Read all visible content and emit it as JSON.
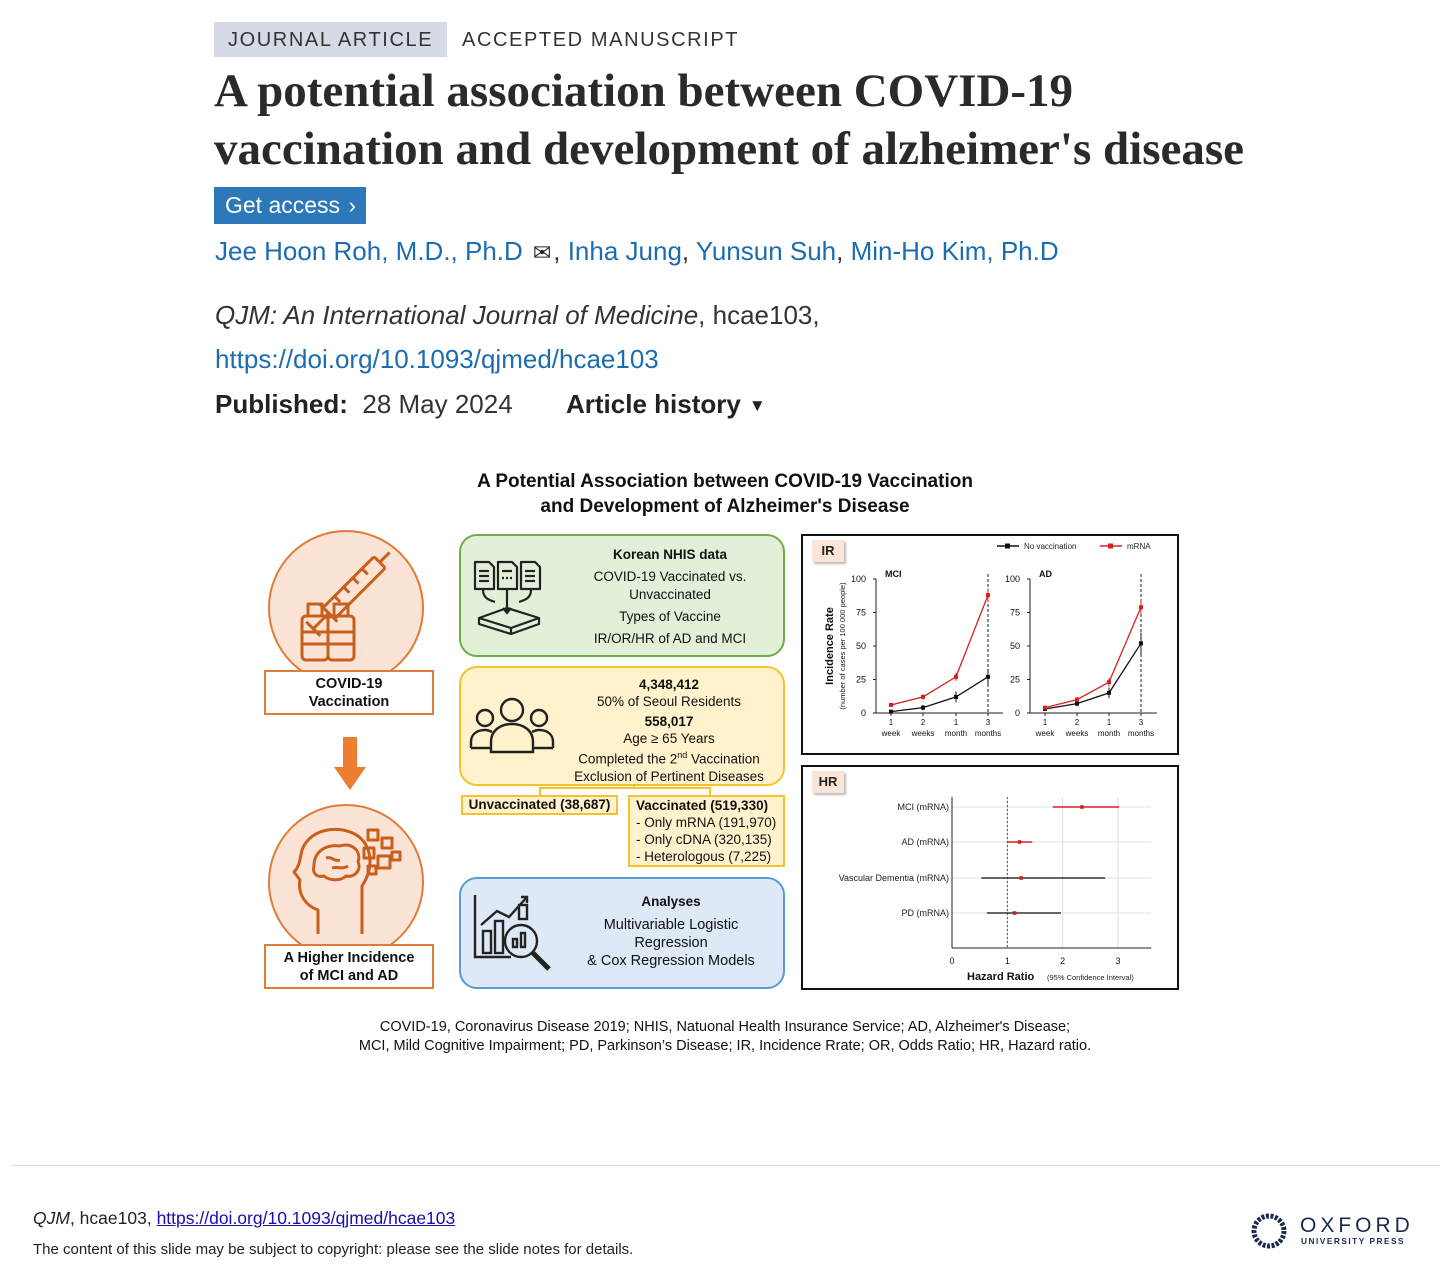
{
  "header": {
    "type_badge": "JOURNAL ARTICLE",
    "status": "ACCEPTED MANUSCRIPT",
    "title": {
      "line1": "A potential association between COVID-19",
      "line2": "vaccination and development of alzheimer's disease"
    },
    "get_access_label": "Get access",
    "authors": [
      {
        "name": "Jee Hoon Roh, M.D., Ph.D",
        "email_icon": "envelope-icon"
      },
      {
        "name": "Inha Jung"
      },
      {
        "name": "Yunsun Suh"
      },
      {
        "name": "Min-Ho Kim, Ph.D"
      }
    ],
    "journal_name": "QJM: An International Journal of Medicine",
    "article_id": ", hcae103,",
    "doi": "https://doi.org/10.1093/qjmed/hcae103",
    "published_label": "Published:",
    "published_date": "28 May 2024",
    "article_history_label": "Article history"
  },
  "figure": {
    "title_line1": "A Potential Association between COVID-19 Vaccination",
    "title_line2": "and Development of Alzheimer's Disease",
    "left": {
      "top_label_line1": "COVID-19",
      "top_label_line2": "Vaccination",
      "bottom_label_line1": "A Higher Incidence",
      "bottom_label_line2": "of MCI and AD"
    },
    "data_box": {
      "heading": "Korean NHIS data",
      "line1": "COVID-19 Vaccinated vs.",
      "line2": "Unvaccinated",
      "line3": "Types of Vaccine",
      "line4": "IR/OR/HR of AD and MCI"
    },
    "cohort_box": {
      "total": "4,348,412",
      "total_desc": "50% of Seoul Residents",
      "selected": "558,017",
      "crit1": "Age ≥ 65 Years",
      "crit2_pre": "Completed the 2",
      "crit2_sup": "nd",
      "crit2_post": " Vaccination",
      "crit3": "Exclusion of Pertinent Diseases"
    },
    "unvaccinated": "Unvaccinated (38,687)",
    "vaccinated": {
      "heading": "Vaccinated (519,330)",
      "items": [
        "- Only mRNA (191,970)",
        "- Only cDNA (320,135)",
        "- Heterologous (7,225)"
      ]
    },
    "analysis_box": {
      "heading": "Analyses",
      "line1": "Multivariable Logistic",
      "line2": "Regression",
      "line3": "& Cox Regression Models"
    },
    "ir_tag": "IR",
    "hr_tag": "HR",
    "footnote_line1": "COVID-19, Coronavirus Disease 2019; NHIS, Natuonal Health Insurance Service; AD, Alzheimer's Disease;",
    "footnote_line2": "MCI, Mild Cognitive Impairment; PD, Parkinson’s Disease; IR, Incidence Rrate; OR, Odds Ratio; HR, Hazard ratio."
  },
  "chart_data": [
    {
      "type": "line",
      "title": "MCI",
      "ylabel": "Incidence Rate",
      "ylabel_sub": "(number of cases per 100 000 people)",
      "categories": [
        [
          "1",
          "week"
        ],
        [
          "2",
          "weeks"
        ],
        [
          "1",
          "month"
        ],
        [
          "3",
          "months"
        ]
      ],
      "ylim": [
        0,
        100
      ],
      "yticks": [
        0,
        25,
        50,
        75,
        100
      ],
      "reference_line_at": "3 months",
      "legend": "top-right",
      "series": [
        {
          "name": "No vaccination",
          "color": "#111111",
          "values": [
            1,
            4,
            12,
            27
          ],
          "errors": [
            1,
            2,
            4,
            6
          ]
        },
        {
          "name": "mRNA",
          "color": "#d62020",
          "values": [
            6,
            12,
            27,
            88
          ],
          "errors": [
            1.5,
            2,
            3,
            5
          ]
        }
      ]
    },
    {
      "type": "line",
      "title": "AD",
      "categories": [
        [
          "1",
          "week"
        ],
        [
          "2",
          "weeks"
        ],
        [
          "1",
          "month"
        ],
        [
          "3",
          "months"
        ]
      ],
      "ylim": [
        0,
        100
      ],
      "yticks": [
        0,
        25,
        50,
        75,
        100
      ],
      "reference_line_at": "3 months",
      "series": [
        {
          "name": "No vaccination",
          "color": "#111111",
          "values": [
            3,
            7,
            15,
            52
          ],
          "errors": [
            1,
            2,
            4,
            8
          ]
        },
        {
          "name": "mRNA",
          "color": "#d62020",
          "values": [
            4,
            10,
            23,
            79
          ],
          "errors": [
            1,
            2,
            3,
            5
          ]
        }
      ]
    },
    {
      "type": "forest",
      "xlabel": "Hazard Ratio",
      "xlabel_sub": "(95% Confidence Interval)",
      "xlim": [
        0,
        3.6
      ],
      "xticks": [
        0,
        1,
        2,
        3
      ],
      "reference_line_at": 1,
      "grid": true,
      "rows": [
        {
          "label": "MCI (mRNA)",
          "hr": 2.35,
          "lo": 1.82,
          "hi": 3.02,
          "color": "#d62020"
        },
        {
          "label": "AD (mRNA)",
          "hr": 1.22,
          "lo": 1.0,
          "hi": 1.45,
          "color": "#d62020"
        },
        {
          "label": "Vascular Dementia (mRNA)",
          "hr": 1.25,
          "lo": 0.53,
          "hi": 2.77,
          "color": "#333333"
        },
        {
          "label": "PD (mRNA)",
          "hr": 1.13,
          "lo": 0.63,
          "hi": 1.97,
          "color": "#333333"
        }
      ]
    }
  ],
  "footer": {
    "journal": "QJM",
    "article_id": ", hcae103, ",
    "doi": "https://doi.org/10.1093/qjmed/hcae103",
    "copyright_note": "The content of this slide may be subject to copyright: please see the slide notes for details.",
    "logo_line1": "OXFORD",
    "logo_line2": "UNIVERSITY PRESS",
    "logo_color": "#1a2a4f"
  }
}
